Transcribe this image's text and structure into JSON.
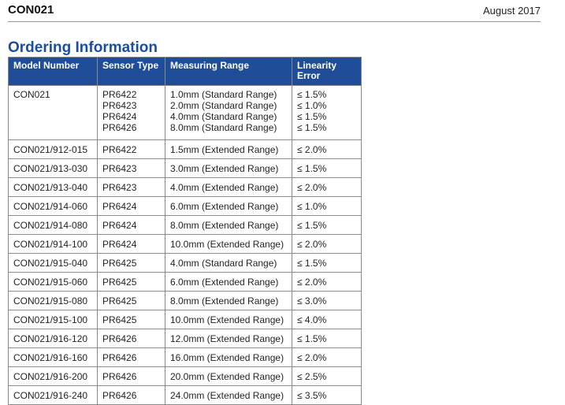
{
  "header": {
    "doc_id": "CON021",
    "date": "August 2017"
  },
  "section_title": "Ordering Information",
  "table": {
    "columns": [
      "Model Number",
      "Sensor Type",
      "Measuring Range",
      "Linearity Error"
    ],
    "first_row": {
      "model": "CON021",
      "sensors": [
        "PR6422",
        "PR6423",
        "PR6424",
        "PR6426"
      ],
      "ranges": [
        "1.0mm (Standard Range)",
        "2.0mm (Standard Range)",
        "4.0mm (Standard Range)",
        "8.0mm (Standard Range)"
      ],
      "errors": [
        "≤ 1.5%",
        "≤ 1.0%",
        "≤ 1.5%",
        "≤ 1.5%"
      ]
    },
    "rows": [
      {
        "model": "CON021/912-015",
        "sensor": "PR6422",
        "range": "1.5mm (Extended Range)",
        "error": "≤ 2.0%"
      },
      {
        "model": "CON021/913-030",
        "sensor": "PR6423",
        "range": "3.0mm (Extended Range)",
        "error": "≤ 1.5%"
      },
      {
        "model": "CON021/913-040",
        "sensor": "PR6423",
        "range": "4.0mm (Extended Range)",
        "error": "≤ 2.0%"
      },
      {
        "model": "CON021/914-060",
        "sensor": "PR6424",
        "range": "6.0mm (Extended Range)",
        "error": "≤ 1.0%"
      },
      {
        "model": "CON021/914-080",
        "sensor": "PR6424",
        "range": "8.0mm (Extended Range)",
        "error": "≤ 1.5%"
      },
      {
        "model": "CON021/914-100",
        "sensor": "PR6424",
        "range": "10.0mm (Extended Range)",
        "error": "≤ 2.0%"
      },
      {
        "model": "CON021/915-040",
        "sensor": "PR6425",
        "range": "4.0mm (Standard Range)",
        "error": "≤ 1.5%"
      },
      {
        "model": "CON021/915-060",
        "sensor": "PR6425",
        "range": "6.0mm (Extended Range)",
        "error": "≤ 2.0%"
      },
      {
        "model": "CON021/915-080",
        "sensor": "PR6425",
        "range": "8.0mm (Extended Range)",
        "error": "≤ 3.0%"
      },
      {
        "model": "CON021/915-100",
        "sensor": "PR6425",
        "range": "10.0mm (Extended Range)",
        "error": "≤ 4.0%"
      },
      {
        "model": "CON021/916-120",
        "sensor": "PR6426",
        "range": "12.0mm (Extended Range)",
        "error": "≤ 1.5%"
      },
      {
        "model": "CON021/916-160",
        "sensor": "PR6426",
        "range": "16.0mm (Extended Range)",
        "error": "≤ 2.0%"
      },
      {
        "model": "CON021/916-200",
        "sensor": "PR6426",
        "range": "20.0mm (Extended Range)",
        "error": "≤ 2.5%"
      },
      {
        "model": "CON021/916-240",
        "sensor": "PR6426",
        "range": "24.0mm (Extended Range)",
        "error": "≤ 3.5%"
      }
    ]
  },
  "colors": {
    "header_fill": "#1f4d98",
    "title": "#1c4e9c"
  }
}
